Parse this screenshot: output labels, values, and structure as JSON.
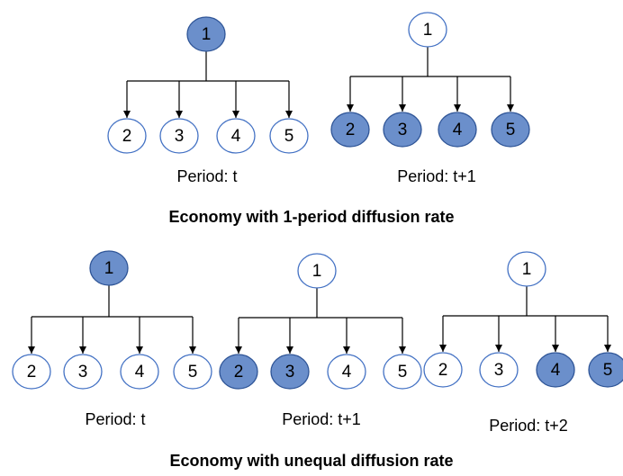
{
  "panels": [
    {
      "title": "Economy with 1-period diffusion rate",
      "trees": [
        {
          "root": {
            "label": "1",
            "filled": true
          },
          "children": [
            {
              "label": "2",
              "filled": false
            },
            {
              "label": "3",
              "filled": false
            },
            {
              "label": "4",
              "filled": false
            },
            {
              "label": "5",
              "filled": false
            }
          ],
          "period": "Period: t"
        },
        {
          "root": {
            "label": "1",
            "filled": false
          },
          "children": [
            {
              "label": "2",
              "filled": true
            },
            {
              "label": "3",
              "filled": true
            },
            {
              "label": "4",
              "filled": true
            },
            {
              "label": "5",
              "filled": true
            }
          ],
          "period": "Period: t+1"
        }
      ]
    },
    {
      "title": "Economy with unequal diffusion rate",
      "trees": [
        {
          "root": {
            "label": "1",
            "filled": true
          },
          "children": [
            {
              "label": "2",
              "filled": false
            },
            {
              "label": "3",
              "filled": false
            },
            {
              "label": "4",
              "filled": false
            },
            {
              "label": "5",
              "filled": false
            }
          ],
          "period": "Period: t"
        },
        {
          "root": {
            "label": "1",
            "filled": false
          },
          "children": [
            {
              "label": "2",
              "filled": true
            },
            {
              "label": "3",
              "filled": true
            },
            {
              "label": "4",
              "filled": false
            },
            {
              "label": "5",
              "filled": false
            }
          ],
          "period": "Period: t+1"
        },
        {
          "root": {
            "label": "1",
            "filled": false
          },
          "children": [
            {
              "label": "2",
              "filled": false
            },
            {
              "label": "3",
              "filled": false
            },
            {
              "label": "4",
              "filled": true
            },
            {
              "label": "5",
              "filled": true
            }
          ],
          "period": "Period: t+2"
        }
      ]
    }
  ]
}
